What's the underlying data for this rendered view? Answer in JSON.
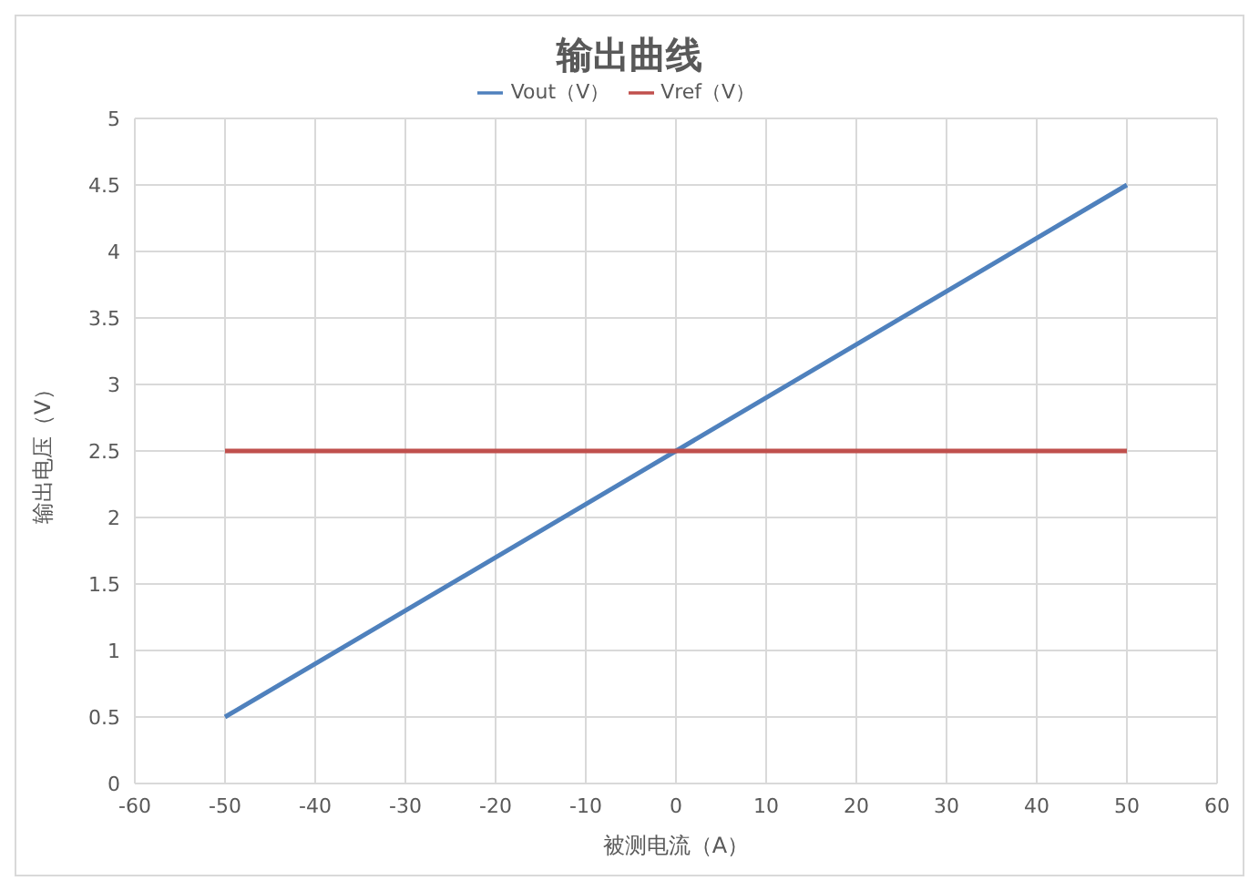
{
  "chart_data": {
    "type": "line",
    "title": "输出曲线",
    "xlabel": "被测电流（A）",
    "ylabel": "输出电压（V）",
    "x": [
      -50,
      0,
      50
    ],
    "series": [
      {
        "name": "Vout（V）",
        "color": "#4f81bd",
        "values": [
          0.5,
          2.5,
          4.5
        ]
      },
      {
        "name": "Vref（V）",
        "color": "#c0504d",
        "values": [
          2.5,
          2.5,
          2.5
        ]
      }
    ],
    "xlim": [
      -60,
      60
    ],
    "xticks": [
      -60,
      -50,
      -40,
      -30,
      -20,
      -10,
      0,
      10,
      20,
      30,
      40,
      50,
      60
    ],
    "ylim": [
      0,
      5
    ],
    "yticks": [
      0,
      0.5,
      1,
      1.5,
      2,
      2.5,
      3,
      3.5,
      4,
      4.5,
      5
    ],
    "grid": true,
    "legend": "top",
    "marker": "none",
    "line_style": "solid"
  }
}
